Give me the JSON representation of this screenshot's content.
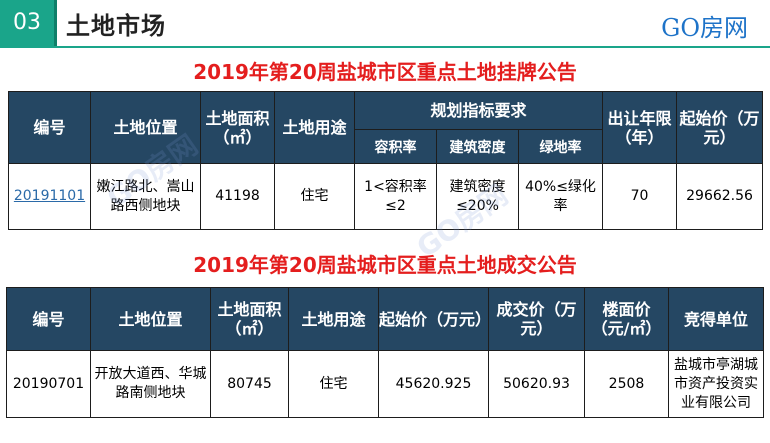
{
  "header": {
    "section_number": "03",
    "section_title": "土地市场",
    "logo_text": "GO房网"
  },
  "listing": {
    "title": "2019年第20周盐城市区重点土地挂牌公告",
    "headers": {
      "id": "编号",
      "location": "土地位置",
      "area": "土地面积（㎡）",
      "use": "土地用途",
      "planning": "规划指标要求",
      "far": "容积率",
      "density": "建筑密度",
      "green": "绿地率",
      "term": "出让年限（年）",
      "start_price": "起始价（万元）"
    },
    "rows": [
      {
        "id": "20191101",
        "location": "嫩江路北、嵩山路西侧地块",
        "area": "41198",
        "use": "住宅",
        "far": "1<容积率≤2",
        "density": "建筑密度≤20%",
        "green": "40%≤绿化率",
        "term": "70",
        "start_price": "29662.56"
      }
    ]
  },
  "transaction": {
    "title": "2019年第20周盐城市区重点土地成交公告",
    "headers": {
      "id": "编号",
      "location": "土地位置",
      "area": "土地面积（㎡）",
      "use": "土地用途",
      "start_price": "起始价（万元）",
      "deal_price": "成交价（万元）",
      "floor_price": "楼面价（元/㎡）",
      "winner": "竞得单位"
    },
    "rows": [
      {
        "id": "20190701",
        "location": "开放大道西、华城路南侧地块",
        "area": "80745",
        "use": "住宅",
        "start_price": "45620.925",
        "deal_price": "50620.93",
        "floor_price": "2508",
        "winner": "盐城市亭湖城市资产投资实业有限公司"
      }
    ]
  },
  "watermark": "GO房网",
  "colors": {
    "accent": "#1aa58a",
    "header_bg": "#254763",
    "title_red": "#e41e1e",
    "logo_blue": "#1e73c8"
  }
}
